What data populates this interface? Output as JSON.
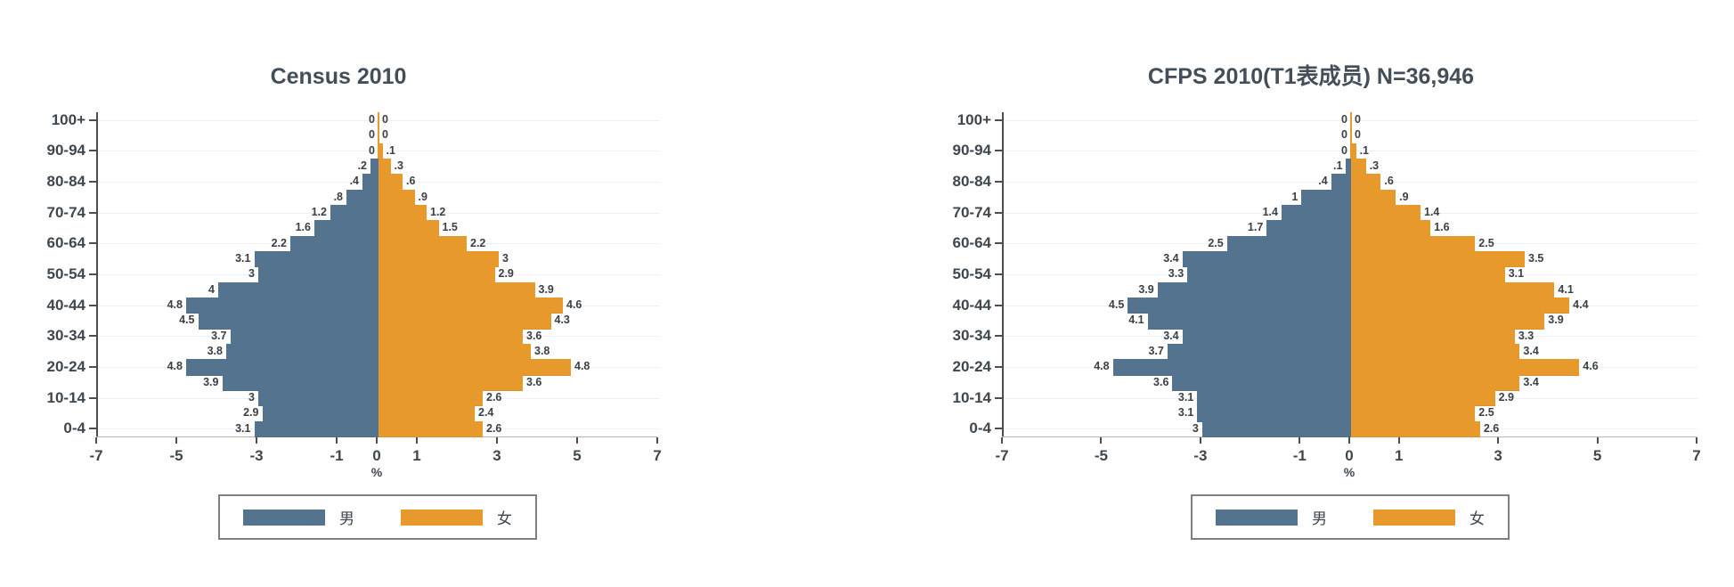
{
  "page": {
    "background": "#ffffff"
  },
  "colors": {
    "male": "#54738e",
    "female": "#e8992c",
    "axis_dark": "#4d4d4d",
    "axis_light": "#b9b2aa",
    "text": "#3e464e",
    "title": "#434e58",
    "grid": "#efefef"
  },
  "chart_data": [
    {
      "type": "bar",
      "variant": "population-pyramid",
      "title": "Census 2010",
      "xlabel": "%",
      "x_range": [
        -7,
        7
      ],
      "x_ticks": [
        -7,
        -5,
        -3,
        -1,
        0,
        1,
        3,
        5,
        7
      ],
      "grid": "horizontal-faint",
      "legend_position": "bottom",
      "age_groups_top_to_bottom": [
        "100+",
        "95-99",
        "90-94",
        "85-89",
        "80-84",
        "75-79",
        "70-74",
        "65-69",
        "60-64",
        "55-59",
        "50-54",
        "45-49",
        "40-44",
        "35-39",
        "30-34",
        "25-29",
        "20-24",
        "15-19",
        "10-14",
        "5-9",
        "0-4"
      ],
      "y_tick_labels_shown": [
        "100+",
        "90-94",
        "80-84",
        "70-74",
        "60-64",
        "50-54",
        "40-44",
        "30-34",
        "20-24",
        "10-14",
        "0-4"
      ],
      "series": [
        {
          "name": "男",
          "side": "left",
          "color": "#54738e",
          "values_top_to_bottom": [
            "0",
            "0",
            "0",
            ".2",
            ".4",
            ".8",
            "1.2",
            "1.6",
            "2.2",
            "3.1",
            "3",
            "4",
            "4.8",
            "4.5",
            "3.7",
            "3.8",
            "4.8",
            "3.9",
            "3",
            "2.9",
            "3.1"
          ]
        },
        {
          "name": "女",
          "side": "right",
          "color": "#e8992c",
          "values_top_to_bottom": [
            "0",
            "0",
            ".1",
            ".3",
            ".6",
            ".9",
            "1.2",
            "1.5",
            "2.2",
            "3",
            "2.9",
            "3.9",
            "4.6",
            "4.3",
            "3.6",
            "3.8",
            "4.8",
            "3.6",
            "2.6",
            "2.4",
            "2.6"
          ]
        }
      ]
    },
    {
      "type": "bar",
      "variant": "population-pyramid",
      "title": "CFPS 2010(T1表成员)  N=36,946",
      "xlabel": "%",
      "x_range": [
        -7,
        7
      ],
      "x_ticks": [
        -7,
        -5,
        -3,
        -1,
        0,
        1,
        3,
        5,
        7
      ],
      "grid": "horizontal-faint",
      "legend_position": "bottom",
      "age_groups_top_to_bottom": [
        "100+",
        "95-99",
        "90-94",
        "85-89",
        "80-84",
        "75-79",
        "70-74",
        "65-69",
        "60-64",
        "55-59",
        "50-54",
        "45-49",
        "40-44",
        "35-39",
        "30-34",
        "25-29",
        "20-24",
        "15-19",
        "10-14",
        "5-9",
        "0-4"
      ],
      "y_tick_labels_shown": [
        "100+",
        "90-94",
        "80-84",
        "70-74",
        "60-64",
        "50-54",
        "40-44",
        "30-34",
        "20-24",
        "10-14",
        "0-4"
      ],
      "series": [
        {
          "name": "男",
          "side": "left",
          "color": "#54738e",
          "values_top_to_bottom": [
            "0",
            "0",
            "0",
            ".1",
            ".4",
            "1",
            "1.4",
            "1.7",
            "2.5",
            "3.4",
            "3.3",
            "3.9",
            "4.5",
            "4.1",
            "3.4",
            "3.7",
            "4.8",
            "3.6",
            "3.1",
            "3.1",
            "3"
          ]
        },
        {
          "name": "女",
          "side": "right",
          "color": "#e8992c",
          "values_top_to_bottom": [
            "0",
            "0",
            ".1",
            ".3",
            ".6",
            ".9",
            "1.4",
            "1.6",
            "2.5",
            "3.5",
            "3.1",
            "4.1",
            "4.4",
            "3.9",
            "3.3",
            "3.4",
            "4.6",
            "3.4",
            "2.9",
            "2.5",
            "2.6"
          ]
        }
      ]
    }
  ]
}
